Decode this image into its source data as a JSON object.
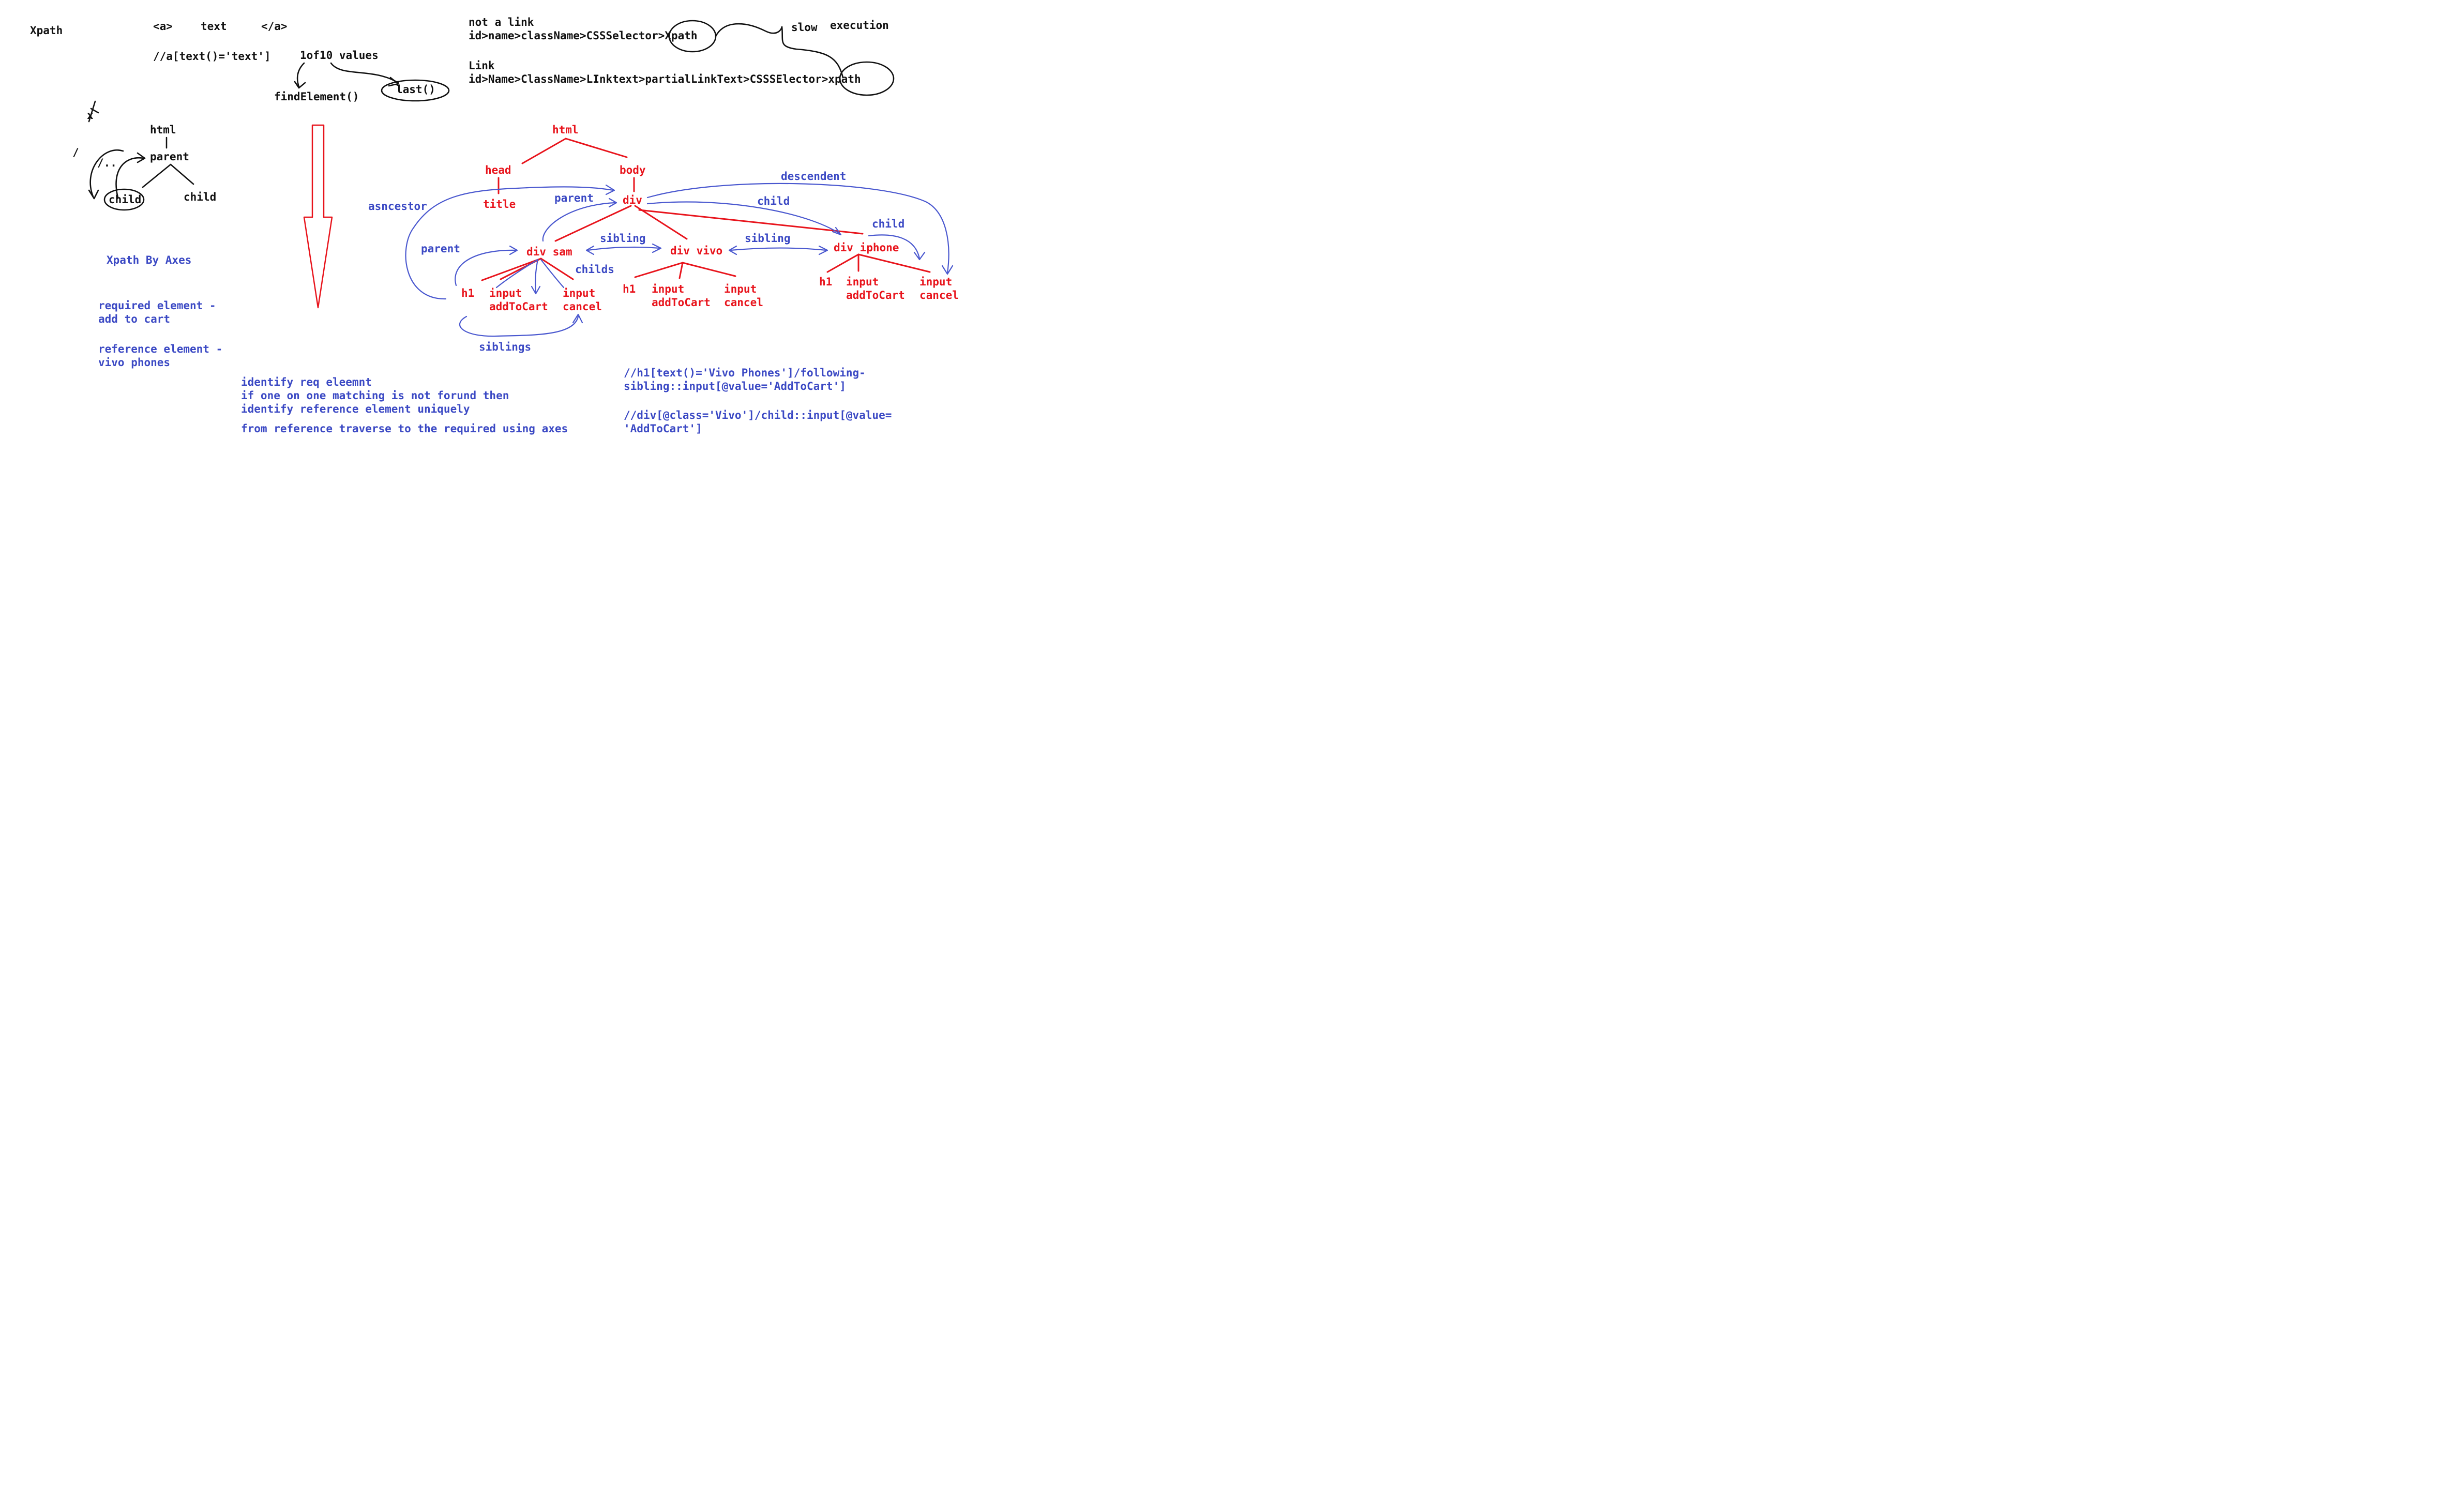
{
  "notes": {
    "xpath_title": "Xpath",
    "a_open": "<a>",
    "a_text": "text",
    "a_close": "</a>",
    "xpath_text_example": "//a[text()='text']",
    "one_of_ten": "1of10 values",
    "find_element": "findElement()",
    "last_fn": "last()",
    "not_a_link": "not a link",
    "chain_not_link": "id>name>className>CSSSelector>Xpath",
    "slow": "slow",
    "execution": "execution",
    "link": "Link",
    "chain_link": "id>Name>ClassName>LInktext>partialLinkText>CSSSElector>xpath"
  },
  "mini_tree": {
    "slash": "/",
    "dot_dot": "/..",
    "html": "html",
    "parent": "parent",
    "child_circled": "child",
    "child": "child",
    "cross_mark": "x"
  },
  "legend": {
    "xpath_by_axes": "Xpath By Axes",
    "required_1": "required element -",
    "required_2": "add to cart",
    "reference_1": "reference element -",
    "reference_2": "vivo phones"
  },
  "steps": [
    "identify req eleemnt",
    "if one on one matching is not forund then",
    "identify reference element uniquely",
    "from reference traverse to the required using axes"
  ],
  "dom_tree": {
    "html": "html",
    "head": "head",
    "body": "body",
    "title": "title",
    "div": "div",
    "div_sam": "div  sam",
    "div_vivo": "div  vivo",
    "div_iphone": "div  iphone",
    "h1": "h1",
    "input": "input",
    "add_to_cart": "addToCart",
    "cancel": "cancel"
  },
  "axes_labels": {
    "descendent": "descendent",
    "asncestor": "asncestor",
    "parent_top": "parent",
    "child_top": "child",
    "child_right": "child",
    "parent_left": "parent",
    "sibling_1": "sibling",
    "sibling_2": "sibling",
    "childs": "childs",
    "siblings": "siblings"
  },
  "xpath_examples": {
    "ex1_line1": "//h1[text()='Vivo Phones']/following-",
    "ex1_line2": "sibling::input[@value='AddToCart']",
    "ex2_line1": "//div[@class='Vivo']/child::input[@value=",
    "ex2_line2": "'AddToCart']"
  },
  "colors": {
    "ink_black": "#111111",
    "ink_red": "#e8141c",
    "ink_blue": "#3b49c4",
    "background": "#ffffff"
  }
}
